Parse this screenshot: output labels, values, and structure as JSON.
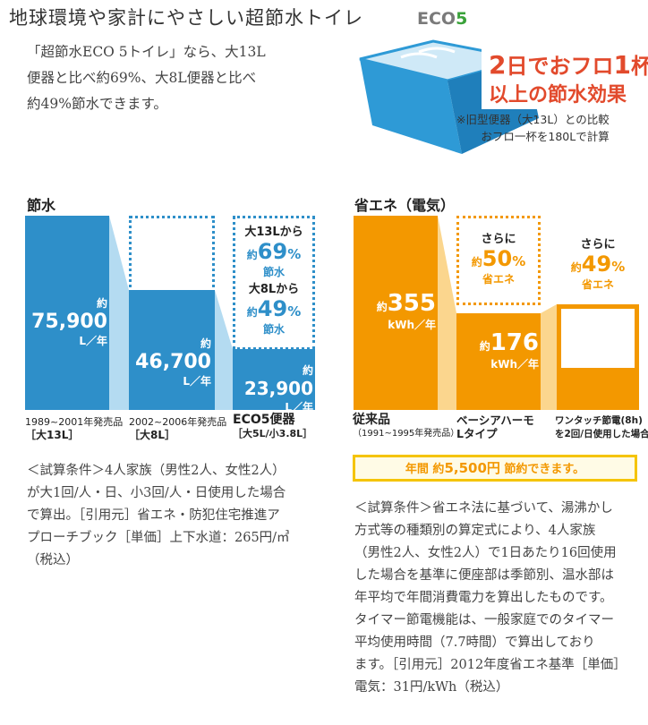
{
  "header": {
    "title": "地球環境や家計にやさしい超節水トイレ",
    "logo_text": "ECO",
    "logo_number": "5"
  },
  "intro": {
    "line1": "「超節水ECO 5トイレ」なら、大13L",
    "line2": "便器と比べ約69%、大8L便器と比べ",
    "line3": "約49%節水できます。"
  },
  "bathtub_promo": {
    "line1_a": "2",
    "line1_b": "日でおフロ",
    "line1_c": "1",
    "line1_d": "杯",
    "line2": "以上の節水効果",
    "note1": "※旧型便器（大13L）との比較",
    "note2": "おフロ一杯を180Lで計算",
    "colors": {
      "tub": "#2e9ad6",
      "text": "#e24a2c"
    }
  },
  "chart_data": [
    {
      "type": "bar",
      "title": "節水",
      "unit": "L／年",
      "categories": [
        "1989~2001年発売品 [大13L]",
        "2002~2006年発売品 [大8L]",
        "ECO5便器 [大5L/小3.8L]"
      ],
      "values": [
        75900,
        46700,
        23900
      ],
      "value_labels": [
        "75,900",
        "46,700",
        "23,900"
      ],
      "color": "#2e8fc9",
      "ylim": [
        0,
        75900
      ],
      "savings": [
        {
          "label": "大13Lから",
          "percent": "69",
          "suffix": "節水"
        },
        {
          "label": "大8Lから",
          "percent": "49",
          "suffix": "節水"
        }
      ]
    },
    {
      "type": "bar",
      "title": "省エネ（電気）",
      "unit": "kWh／年",
      "categories": [
        "従来品 (1991~1995年発売品)",
        "ベーシアハーモ Lタイプ",
        "ワンタッチ節電(8h)を2回/日使用した場合"
      ],
      "values": [
        355,
        176,
        null
      ],
      "value_labels": [
        "355",
        "176",
        ""
      ],
      "color": "#f39800",
      "savings": [
        {
          "label": "さらに",
          "percent": "50",
          "suffix": "省エネ"
        },
        {
          "label": "さらに",
          "percent": "49",
          "suffix": "省エネ"
        }
      ],
      "annual_saving": {
        "prefix": "年間",
        "approx": "約",
        "amount": "5,500円",
        "suffix": "節約できます。"
      }
    }
  ],
  "labels": {
    "approx": "約",
    "pct_sign": "%",
    "cap1_line1": "1989~2001年発売品",
    "cap1_line2": "［大13L］",
    "cap2_line1": "2002~2006年発売品",
    "cap2_line2": "［大8L］",
    "cap3_line1": "ECO5便器",
    "cap3_line2": "［大5L/小3.8L］",
    "ocap1_line1": "従来品",
    "ocap1_line2": "（1991~1995年発売品）",
    "ocap2_line1": "ベーシアハーモ",
    "ocap2_line2": "Lタイプ",
    "ocap3_line1": "ワンタッチ節電(8h)",
    "ocap3_line2": "を2回/日使用した場合"
  },
  "conditions_left": {
    "l1": "＜試算条件＞4人家族（男性2人、女性2人）",
    "l2": "が大1回/人・日、小3回/人・日使用した場合",
    "l3": "で算出。［引用元］省エネ・防犯住宅推進ア",
    "l4": "プローチブック［単価］上下水道：265円/㎥",
    "l5": "（税込）"
  },
  "conditions_right": {
    "l1": "＜試算条件＞省エネ法に基づいて、湯沸かし",
    "l2": "方式等の種類別の算定式により、4人家族",
    "l3": "（男性2人、女性2人）で1日あたり16回使用",
    "l4": "した場合を基準に便座部は季節別、温水部は",
    "l5": "年平均で年間消費電力を算出したものです。",
    "l6": "タイマー節電機能は、一般家庭でのタイマー",
    "l7": "平均使用時間（7.7時間）で算出しており",
    "l8": "ます。［引用元］2012年度省エネ基準［単価］",
    "l9": "電気：31円/kWh（税込）"
  }
}
